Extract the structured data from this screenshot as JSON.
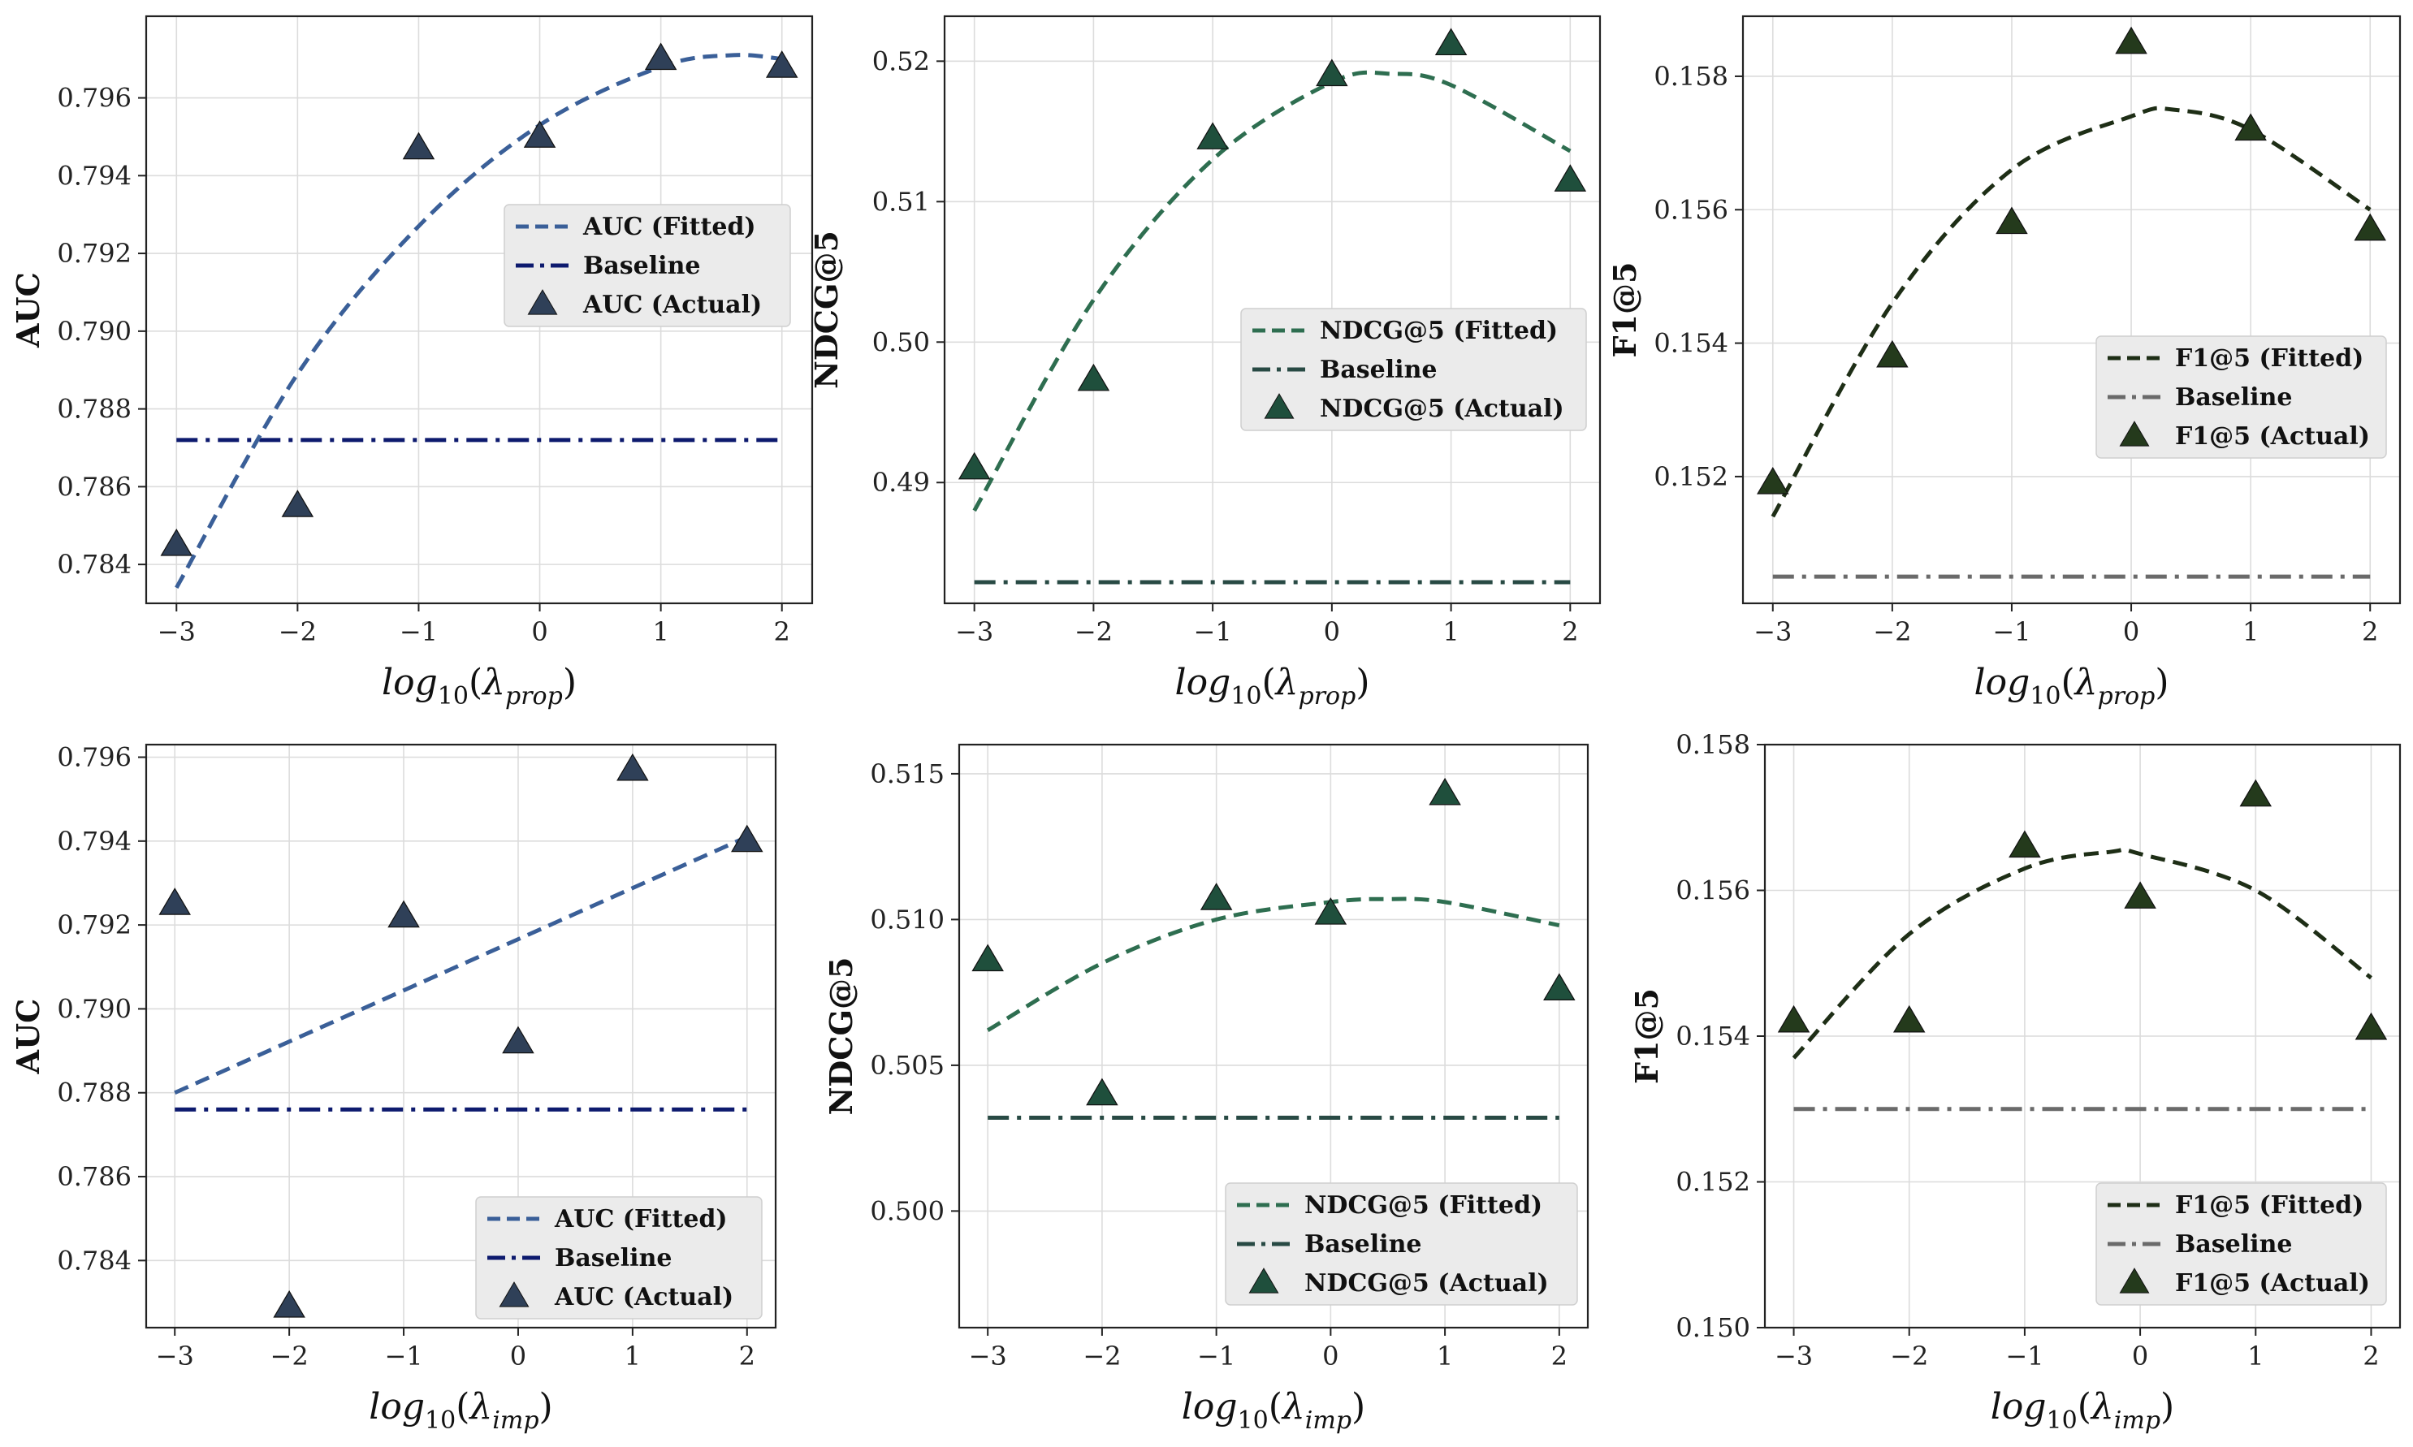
{
  "chart_data": [
    {
      "type": "scatter",
      "ylabel": "AUC",
      "xlabel_base": "log",
      "xlabel_sub10": "10",
      "xlabel_lambda": "λ",
      "xlabel_sub": "prop",
      "xlim": [
        -3.25,
        2.25
      ],
      "ylim": [
        0.783,
        0.7981
      ],
      "xticks": [
        {
          "v": -3,
          "label": "−3"
        },
        {
          "v": -2,
          "label": "−2"
        },
        {
          "v": -1,
          "label": "−1"
        },
        {
          "v": 0,
          "label": "0"
        },
        {
          "v": 1,
          "label": "1"
        },
        {
          "v": 2,
          "label": "2"
        }
      ],
      "yticks": [
        {
          "v": 0.784,
          "label": "0.784"
        },
        {
          "v": 0.786,
          "label": "0.786"
        },
        {
          "v": 0.788,
          "label": "0.788"
        },
        {
          "v": 0.79,
          "label": "0.790"
        },
        {
          "v": 0.792,
          "label": "0.792"
        },
        {
          "v": 0.794,
          "label": "0.794"
        },
        {
          "v": 0.796,
          "label": "0.796"
        }
      ],
      "fitted": {
        "name": "AUC (Fitted)",
        "color": "#3a5f98",
        "x": [
          -3.0,
          -2.0,
          -1.0,
          0.0,
          1.0,
          1.6,
          2.0
        ],
        "y": [
          0.7834,
          0.7889,
          0.7927,
          0.7953,
          0.7968,
          0.7971,
          0.797
        ]
      },
      "baseline": {
        "name": "Baseline",
        "color": "#0d1a6e",
        "value": 0.7872
      },
      "actual": {
        "name": "AUC (Actual)",
        "color": "#2f4058",
        "x": [
          -3,
          -2,
          -1,
          0,
          1,
          2
        ],
        "y": [
          0.7845,
          0.7855,
          0.7947,
          0.795,
          0.797,
          0.7968
        ]
      },
      "legend_position": "center-right"
    },
    {
      "type": "scatter",
      "ylabel": "NDCG@5",
      "xlabel_base": "log",
      "xlabel_sub10": "10",
      "xlabel_lambda": "λ",
      "xlabel_sub": "prop",
      "xlim": [
        -3.25,
        2.25
      ],
      "ylim": [
        0.4814,
        0.5232
      ],
      "xticks": [
        {
          "v": -3,
          "label": "−3"
        },
        {
          "v": -2,
          "label": "−2"
        },
        {
          "v": -1,
          "label": "−1"
        },
        {
          "v": 0,
          "label": "0"
        },
        {
          "v": 1,
          "label": "1"
        },
        {
          "v": 2,
          "label": "2"
        }
      ],
      "yticks": [
        {
          "v": 0.49,
          "label": "0.49"
        },
        {
          "v": 0.5,
          "label": "0.50"
        },
        {
          "v": 0.51,
          "label": "0.51"
        },
        {
          "v": 0.52,
          "label": "0.52"
        }
      ],
      "fitted": {
        "name": "NDCG@5 (Fitted)",
        "color": "#2e6e50",
        "x": [
          -3.0,
          -2.0,
          -1.0,
          0.0,
          0.5,
          1.0,
          2.0
        ],
        "y": [
          0.488,
          0.503,
          0.513,
          0.5185,
          0.5191,
          0.5183,
          0.5136
        ]
      },
      "baseline": {
        "name": "Baseline",
        "color": "#284a44",
        "value": 0.4829
      },
      "actual": {
        "name": "NDCG@5 (Actual)",
        "color": "#1f4f3c",
        "x": [
          -3,
          -2,
          -1,
          0,
          1,
          2
        ],
        "y": [
          0.491,
          0.4973,
          0.5145,
          0.519,
          0.5212,
          0.5115
        ]
      },
      "legend_position": "lower-right"
    },
    {
      "type": "scatter",
      "ylabel": "F1@5",
      "xlabel_base": "log",
      "xlabel_sub10": "10",
      "xlabel_lambda": "λ",
      "xlabel_sub": "prop",
      "xlim": [
        -3.25,
        2.25
      ],
      "ylim": [
        0.1501,
        0.1589
      ],
      "xticks": [
        {
          "v": -3,
          "label": "−3"
        },
        {
          "v": -2,
          "label": "−2"
        },
        {
          "v": -1,
          "label": "−1"
        },
        {
          "v": 0,
          "label": "0"
        },
        {
          "v": 1,
          "label": "1"
        },
        {
          "v": 2,
          "label": "2"
        }
      ],
      "yticks": [
        {
          "v": 0.152,
          "label": "0.152"
        },
        {
          "v": 0.154,
          "label": "0.154"
        },
        {
          "v": 0.156,
          "label": "0.156"
        },
        {
          "v": 0.158,
          "label": "0.158"
        }
      ],
      "fitted": {
        "name": "F1@5 (Fitted)",
        "color": "#1e2e16",
        "x": [
          -3.0,
          -2.0,
          -1.0,
          0.0,
          0.35,
          1.0,
          2.0
        ],
        "y": [
          0.1514,
          0.1546,
          0.1566,
          0.1574,
          0.1575,
          0.1572,
          0.156
        ]
      },
      "baseline": {
        "name": "Baseline",
        "color": "#6a6a6a",
        "value": 0.1505
      },
      "actual": {
        "name": "F1@5 (Actual)",
        "color": "#243a1c",
        "x": [
          -3,
          -2,
          -1,
          0,
          1,
          2
        ],
        "y": [
          0.1519,
          0.1538,
          0.1558,
          0.1585,
          0.1572,
          0.1557
        ]
      },
      "legend_position": "lower-right"
    },
    {
      "type": "scatter",
      "ylabel": "AUC",
      "xlabel_base": "log",
      "xlabel_sub10": "10",
      "xlabel_lambda": "λ",
      "xlabel_sub": "imp",
      "xlim": [
        -3.25,
        2.25
      ],
      "ylim": [
        0.7824,
        0.7963
      ],
      "xticks": [
        {
          "v": -3,
          "label": "−3"
        },
        {
          "v": -2,
          "label": "−2"
        },
        {
          "v": -1,
          "label": "−1"
        },
        {
          "v": 0,
          "label": "0"
        },
        {
          "v": 1,
          "label": "1"
        },
        {
          "v": 2,
          "label": "2"
        }
      ],
      "yticks": [
        {
          "v": 0.784,
          "label": "0.784"
        },
        {
          "v": 0.786,
          "label": "0.786"
        },
        {
          "v": 0.788,
          "label": "0.788"
        },
        {
          "v": 0.79,
          "label": "0.790"
        },
        {
          "v": 0.792,
          "label": "0.792"
        },
        {
          "v": 0.794,
          "label": "0.794"
        },
        {
          "v": 0.796,
          "label": "0.796"
        }
      ],
      "fitted": {
        "name": "AUC (Fitted)",
        "color": "#3a5f98",
        "x": [
          -3.0,
          2.0
        ],
        "y": [
          0.788,
          0.7941
        ]
      },
      "baseline": {
        "name": "Baseline",
        "color": "#0d1a6e",
        "value": 0.7876
      },
      "actual": {
        "name": "AUC (Actual)",
        "color": "#2f4058",
        "x": [
          -3,
          -2,
          -1,
          0,
          1,
          2
        ],
        "y": [
          0.7925,
          0.7829,
          0.7922,
          0.7892,
          0.7957,
          0.794
        ]
      },
      "legend_position": "lower-right"
    },
    {
      "type": "scatter",
      "ylabel": "NDCG@5",
      "xlabel_base": "log",
      "xlabel_sub10": "10",
      "xlabel_lambda": "λ",
      "xlabel_sub": "imp",
      "xlim": [
        -3.25,
        2.25
      ],
      "ylim": [
        0.496,
        0.516
      ],
      "xticks": [
        {
          "v": -3,
          "label": "−3"
        },
        {
          "v": -2,
          "label": "−2"
        },
        {
          "v": -1,
          "label": "−1"
        },
        {
          "v": 0,
          "label": "0"
        },
        {
          "v": 1,
          "label": "1"
        },
        {
          "v": 2,
          "label": "2"
        }
      ],
      "yticks": [
        {
          "v": 0.5,
          "label": "0.500"
        },
        {
          "v": 0.505,
          "label": "0.505"
        },
        {
          "v": 0.51,
          "label": "0.510"
        },
        {
          "v": 0.515,
          "label": "0.515"
        }
      ],
      "fitted": {
        "name": "NDCG@5 (Fitted)",
        "color": "#2e6e50",
        "x": [
          -3.0,
          -2.0,
          -1.0,
          0.0,
          0.5,
          1.0,
          2.0
        ],
        "y": [
          0.5062,
          0.5085,
          0.51,
          0.5106,
          0.5107,
          0.5106,
          0.5098
        ]
      },
      "baseline": {
        "name": "Baseline",
        "color": "#284a44",
        "value": 0.5032
      },
      "actual": {
        "name": "NDCG@5 (Actual)",
        "color": "#1f4f3c",
        "x": [
          -3,
          -2,
          -1,
          0,
          1,
          2
        ],
        "y": [
          0.5086,
          0.504,
          0.5107,
          0.5102,
          0.5143,
          0.5076
        ]
      },
      "legend_position": "lower-right"
    },
    {
      "type": "scatter",
      "ylabel": "F1@5",
      "xlabel_base": "log",
      "xlabel_sub10": "10",
      "xlabel_lambda": "λ",
      "xlabel_sub": "imp",
      "xlim": [
        -3.25,
        2.25
      ],
      "ylim": [
        0.15,
        0.158
      ],
      "xticks": [
        {
          "v": -3,
          "label": "−3"
        },
        {
          "v": -2,
          "label": "−2"
        },
        {
          "v": -1,
          "label": "−1"
        },
        {
          "v": 0,
          "label": "0"
        },
        {
          "v": 1,
          "label": "1"
        },
        {
          "v": 2,
          "label": "2"
        }
      ],
      "yticks": [
        {
          "v": 0.15,
          "label": "0.150"
        },
        {
          "v": 0.152,
          "label": "0.152"
        },
        {
          "v": 0.154,
          "label": "0.154"
        },
        {
          "v": 0.156,
          "label": "0.156"
        },
        {
          "v": 0.158,
          "label": "0.158"
        }
      ],
      "fitted": {
        "name": "F1@5 (Fitted)",
        "color": "#1e2e16",
        "x": [
          -3.0,
          -2.0,
          -1.0,
          -0.25,
          0.0,
          1.0,
          2.0
        ],
        "y": [
          0.1537,
          0.1554,
          0.1563,
          0.15653,
          0.1565,
          0.156,
          0.1548
        ]
      },
      "baseline": {
        "name": "Baseline",
        "color": "#6a6a6a",
        "value": 0.153
      },
      "actual": {
        "name": "F1@5 (Actual)",
        "color": "#243a1c",
        "x": [
          -3,
          -2,
          -1,
          0,
          1,
          2
        ],
        "y": [
          0.1542,
          0.1542,
          0.1566,
          0.1559,
          0.1573,
          0.1541
        ]
      },
      "legend_position": "lower-right"
    }
  ]
}
